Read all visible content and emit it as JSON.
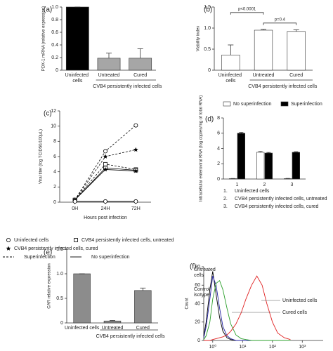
{
  "chart_data": [
    {
      "type": "bar",
      "panel_label": "(a)",
      "y_label": "PDX-1 mRNA (relative expression)",
      "categories": [
        "Uninfected cells",
        "Untreated",
        "Cured"
      ],
      "values": [
        1.0,
        0.19,
        0.19
      ],
      "errors": [
        0,
        0.08,
        0.15
      ],
      "colors": [
        "#000000",
        "#a6a6a6",
        "#a6a6a6"
      ],
      "group_label": "CVB4 persistently infected cells",
      "ylim": [
        0,
        1
      ],
      "yticks": [
        0,
        0.2,
        0.4,
        0.6,
        0.8,
        {
          "value": 1,
          "label": "1.0"
        }
      ]
    },
    {
      "type": "bar",
      "panel_label": "(b)",
      "y_label": "Viability index",
      "categories": [
        "Uninfected cells",
        "Untreated",
        "Cured"
      ],
      "values": [
        0.36,
        0.95,
        0.92
      ],
      "errors": [
        0.24,
        0.02,
        0.04
      ],
      "colors": [
        "#ffffff",
        "#ffffff",
        "#ffffff"
      ],
      "group_label": "CVB4 persistently infected cells",
      "ylim": [
        0,
        1.5
      ],
      "yticks": [
        0,
        0.5,
        {
          "value": 1,
          "label": "1.0"
        },
        1.5
      ],
      "annotations": [
        {
          "text": "p<0.0001",
          "from": 0,
          "to": 1,
          "y": 1.37
        },
        {
          "text": "p=0.4",
          "from": 1,
          "to": 2,
          "y": 1.12
        }
      ]
    },
    {
      "type": "line",
      "panel_label": "(c)",
      "y_label": "Viral titer (log TCID50/100µL)",
      "x_label": "Hours post infection",
      "categories": [
        "0H",
        "24H",
        "72H"
      ],
      "ylim": [
        0,
        12
      ],
      "yticks": [
        0,
        2,
        4,
        6,
        8,
        10,
        12
      ],
      "series": [
        {
          "marker": "circle",
          "dash": "dashed",
          "values": [
            0.3,
            6.7,
            10.1
          ]
        },
        {
          "marker": "star",
          "dash": "dashed",
          "values": [
            0.3,
            6.0,
            6.9
          ]
        },
        {
          "marker": "square",
          "dash": "dashed",
          "values": [
            0.3,
            5.0,
            4.3
          ]
        },
        {
          "marker": "square",
          "dash": "solid",
          "values": [
            0.3,
            4.5,
            4.2
          ]
        },
        {
          "marker": "star",
          "dash": "solid",
          "values": [
            0.3,
            4.3,
            4.1
          ]
        },
        {
          "marker": "circle",
          "dash": "solid",
          "values": [
            0.1,
            0.1,
            0.1
          ]
        }
      ],
      "legend": [
        {
          "label": "Uninfected cells",
          "marker": "circle"
        },
        {
          "label": "CVB4 persistently infected cells, untreated",
          "marker": "square"
        },
        {
          "label": "CVB4 persistently infected cells, cured",
          "marker": "star"
        },
        {
          "label": "Superinfection",
          "dash": "dashed"
        },
        {
          "label": "No superinfection",
          "dash": "solid"
        }
      ]
    },
    {
      "type": "grouped_bar",
      "panel_label": "(d)",
      "y_label": "Intracellular enteroviral RNA (log copies/mg of total RNA)",
      "categories": [
        "1",
        "2",
        "3"
      ],
      "ylim": [
        0,
        8
      ],
      "yticks": [
        0,
        2,
        4,
        6,
        8
      ],
      "series": [
        {
          "name": "No superinfection",
          "color": "#ffffff",
          "values": [
            0.05,
            3.5,
            0.05
          ],
          "errors": [
            0.02,
            0.1,
            0.03
          ]
        },
        {
          "name": "Superinfection",
          "color": "#000000",
          "values": [
            6.0,
            3.4,
            3.5
          ],
          "errors": [
            0.1,
            0.08,
            0.08
          ]
        }
      ],
      "notes": [
        {
          "number": "1.",
          "text": "Uninfected cells"
        },
        {
          "number": "2.",
          "text": "CVB4 persistently infected cells, untreated"
        },
        {
          "number": "3.",
          "text": "CVB4 persistently infected cells, cured"
        }
      ]
    },
    {
      "type": "bar",
      "panel_label": "(e)",
      "y_label": "CAR relative expression",
      "categories": [
        "Uninfected cells",
        "Untreated",
        "Cured"
      ],
      "values": [
        1.0,
        0.04,
        0.66
      ],
      "errors": [
        0,
        0.01,
        0.05
      ],
      "colors": [
        "#8c8c8c",
        "#8c8c8c",
        "#8c8c8c"
      ],
      "group_label": "CVB4 persistently infected cells",
      "ylim": [
        0,
        1.5
      ],
      "yticks": [
        0,
        0.5,
        {
          "value": 1,
          "label": "1.0"
        },
        1.5
      ]
    },
    {
      "type": "histogram_overlay",
      "panel_label": "(f)",
      "y_label": "Count",
      "x_log": true,
      "xlim": [
        0.5,
        5000
      ],
      "xticks": [
        {
          "value": 1,
          "label": "10⁰"
        },
        {
          "value": 10,
          "label": "10¹"
        },
        {
          "value": 100,
          "label": "10²"
        },
        {
          "value": 1000,
          "label": "10³"
        }
      ],
      "ylim": [
        0,
        80
      ],
      "yticks": [
        0,
        20,
        40,
        60,
        80
      ],
      "x": [
        0.5,
        0.6,
        0.8,
        1,
        1.3,
        1.7,
        2.2,
        3,
        4,
        6,
        9,
        13,
        20,
        30,
        45,
        65,
        100,
        150,
        250,
        400
      ],
      "series": [
        {
          "name": "Control isotype",
          "color": "#000000",
          "values": [
            5,
            20,
            55,
            75,
            50,
            25,
            10,
            3,
            1,
            0,
            0,
            0,
            0,
            0,
            0,
            0,
            0,
            0,
            0,
            0
          ]
        },
        {
          "name": "Untreated cells",
          "color": "#1f1fa0",
          "values": [
            3,
            15,
            45,
            70,
            60,
            35,
            15,
            5,
            2,
            0,
            0,
            0,
            0,
            0,
            0,
            0,
            0,
            0,
            0,
            0
          ]
        },
        {
          "name": "Cured cells",
          "color": "#2ca02c",
          "values": [
            1,
            5,
            20,
            45,
            62,
            65,
            55,
            35,
            18,
            6,
            2,
            1,
            0,
            0,
            0,
            0,
            0,
            0,
            0,
            0
          ]
        },
        {
          "name": "Uninfected cells",
          "color": "#e02020",
          "values": [
            0,
            0,
            0,
            1,
            2,
            3,
            4,
            6,
            10,
            18,
            30,
            45,
            60,
            70,
            60,
            40,
            20,
            8,
            3,
            1
          ]
        }
      ]
    }
  ]
}
